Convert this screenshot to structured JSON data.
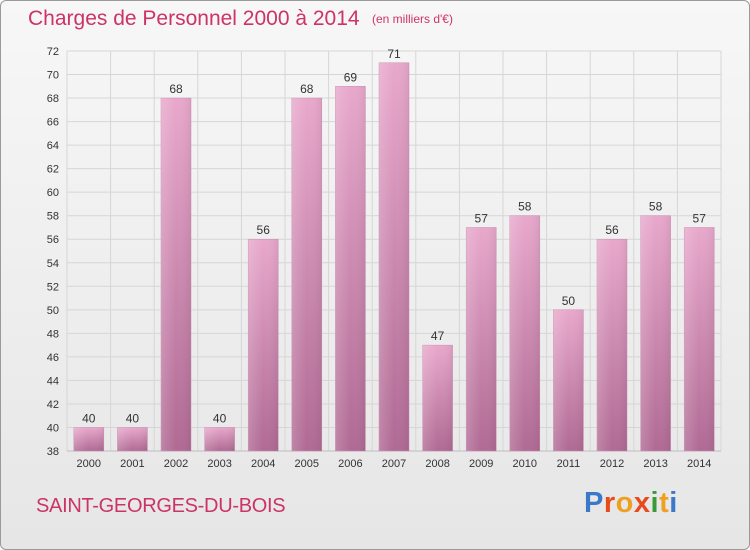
{
  "header": {
    "title": "Charges de Personnel 2000 à 2014",
    "subtitle": "(en milliers d'€)"
  },
  "footer": {
    "commune": "SAINT-GEORGES-DU-BOIS",
    "logo_text": "Proxiti"
  },
  "colors": {
    "title": "#cc3366",
    "bar_top": "#e8a8cc",
    "bar_bottom": "#b06a94",
    "grid": "#d6d6d6",
    "axis_text": "#333333"
  },
  "chart_data": {
    "type": "bar",
    "title": "Charges de Personnel 2000 à 2014",
    "subtitle": "(en milliers d'€)",
    "categories": [
      "2000",
      "2001",
      "2002",
      "2003",
      "2004",
      "2005",
      "2006",
      "2007",
      "2008",
      "2009",
      "2010",
      "2011",
      "2012",
      "2013",
      "2014"
    ],
    "values": [
      40,
      40,
      68,
      40,
      56,
      68,
      69,
      71,
      47,
      57,
      58,
      50,
      56,
      58,
      57
    ],
    "ylim": [
      38,
      72
    ],
    "yticks": [
      38,
      40,
      42,
      44,
      46,
      48,
      50,
      52,
      54,
      56,
      58,
      60,
      62,
      64,
      66,
      68,
      70,
      72
    ],
    "grid": true,
    "data_labels": true
  }
}
